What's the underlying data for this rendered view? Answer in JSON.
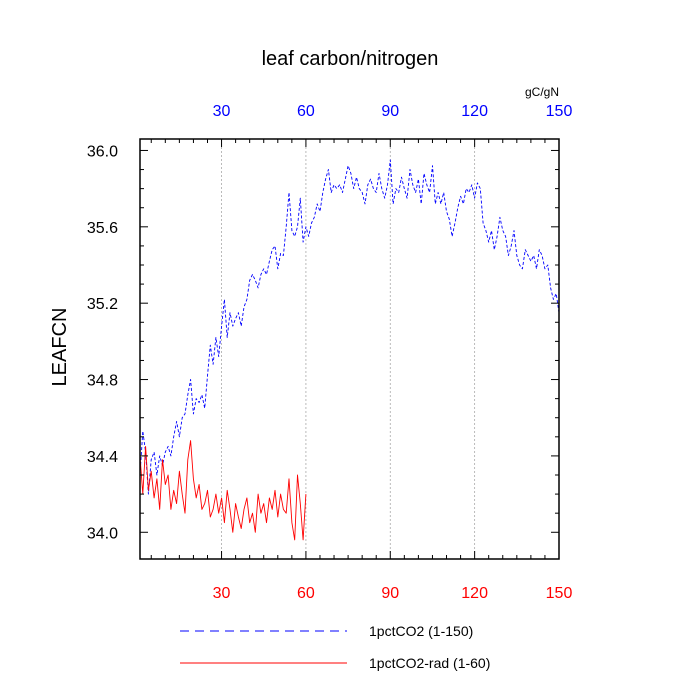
{
  "chart_data": {
    "type": "line",
    "title": "leaf carbon/nitrogen",
    "ylabel": "LEAFCN",
    "units": "gC/gN",
    "xlim": [
      1,
      150
    ],
    "ylim": [
      33.86,
      36.06
    ],
    "xticks": [
      30,
      60,
      90,
      120,
      150
    ],
    "yticks": [
      34.0,
      34.4,
      34.8,
      35.2,
      35.6,
      36.0
    ],
    "ytick_labels": [
      "34.0",
      "34.4",
      "34.8",
      "35.2",
      "35.6",
      "36.0"
    ],
    "grid": "x-dashed",
    "legend_position": "bottom",
    "series": [
      {
        "name": "1pctCO2 (1-150)",
        "color": "#0000ff",
        "dash": "dashed",
        "x": [
          1,
          2,
          3,
          4,
          5,
          6,
          7,
          8,
          9,
          10,
          11,
          12,
          13,
          14,
          15,
          16,
          17,
          18,
          19,
          20,
          21,
          22,
          23,
          24,
          25,
          26,
          27,
          28,
          29,
          30,
          31,
          32,
          33,
          34,
          35,
          36,
          37,
          38,
          39,
          40,
          41,
          42,
          43,
          44,
          45,
          46,
          47,
          48,
          49,
          50,
          51,
          52,
          53,
          54,
          55,
          56,
          57,
          58,
          59,
          60,
          61,
          62,
          63,
          64,
          65,
          66,
          67,
          68,
          69,
          70,
          71,
          72,
          73,
          74,
          75,
          76,
          77,
          78,
          79,
          80,
          81,
          82,
          83,
          84,
          85,
          86,
          87,
          88,
          89,
          90,
          91,
          92,
          93,
          94,
          95,
          96,
          97,
          98,
          99,
          100,
          101,
          102,
          103,
          104,
          105,
          106,
          107,
          108,
          109,
          110,
          111,
          112,
          113,
          114,
          115,
          116,
          117,
          118,
          119,
          120,
          121,
          122,
          123,
          124,
          125,
          126,
          127,
          128,
          129,
          130,
          131,
          132,
          133,
          134,
          135,
          136,
          137,
          138,
          139,
          140,
          141,
          142,
          143,
          144,
          145,
          146,
          147,
          148,
          149,
          150
        ],
        "values": [
          34.3,
          34.53,
          34.42,
          34.2,
          34.38,
          34.42,
          34.3,
          34.4,
          34.35,
          34.42,
          34.45,
          34.4,
          34.5,
          34.58,
          34.5,
          34.6,
          34.62,
          34.72,
          34.8,
          34.62,
          34.7,
          34.68,
          34.72,
          34.65,
          34.82,
          34.98,
          34.88,
          35.02,
          34.92,
          35.08,
          35.22,
          35.02,
          35.15,
          35.08,
          35.12,
          35.15,
          35.08,
          35.18,
          35.22,
          35.32,
          35.35,
          35.32,
          35.28,
          35.35,
          35.38,
          35.35,
          35.42,
          35.48,
          35.5,
          35.38,
          35.46,
          35.45,
          35.6,
          35.78,
          35.58,
          35.55,
          35.6,
          35.75,
          35.52,
          35.6,
          35.55,
          35.62,
          35.65,
          35.72,
          35.68,
          35.78,
          35.85,
          35.9,
          35.78,
          35.82,
          35.8,
          35.82,
          35.78,
          35.85,
          35.92,
          35.88,
          35.8,
          35.86,
          35.8,
          35.78,
          35.72,
          35.82,
          35.85,
          35.8,
          35.78,
          35.88,
          35.8,
          35.75,
          35.82,
          35.95,
          35.72,
          35.8,
          35.78,
          35.86,
          35.8,
          35.75,
          35.9,
          35.82,
          35.78,
          35.85,
          35.72,
          35.88,
          35.82,
          35.78,
          35.92,
          35.72,
          35.78,
          35.72,
          35.78,
          35.68,
          35.64,
          35.55,
          35.62,
          35.7,
          35.76,
          35.72,
          35.8,
          35.78,
          35.82,
          35.75,
          35.83,
          35.8,
          35.62,
          35.58,
          35.52,
          35.58,
          35.48,
          35.55,
          35.65,
          35.58,
          35.55,
          35.45,
          35.5,
          35.58,
          35.45,
          35.4,
          35.38,
          35.48,
          35.45,
          35.42,
          35.45,
          35.38,
          35.48,
          35.45,
          35.38,
          35.4,
          35.28,
          35.22,
          35.25,
          35.15
        ]
      },
      {
        "name": "1pctCO2-rad (1-60)",
        "color": "#ff0000",
        "dash": "solid",
        "x": [
          1,
          2,
          3,
          4,
          5,
          6,
          7,
          8,
          9,
          10,
          11,
          12,
          13,
          14,
          15,
          16,
          17,
          18,
          19,
          20,
          21,
          22,
          23,
          24,
          25,
          26,
          27,
          28,
          29,
          30,
          31,
          32,
          33,
          34,
          35,
          36,
          37,
          38,
          39,
          40,
          41,
          42,
          43,
          44,
          45,
          46,
          47,
          48,
          49,
          50,
          51,
          52,
          53,
          54,
          55,
          56,
          57,
          58,
          59,
          60
        ],
        "values": [
          34.4,
          34.2,
          34.45,
          34.22,
          34.32,
          34.18,
          34.28,
          34.12,
          34.38,
          34.25,
          34.3,
          34.12,
          34.22,
          34.15,
          34.32,
          34.2,
          34.1,
          34.38,
          34.48,
          34.28,
          34.18,
          34.25,
          34.12,
          34.15,
          34.22,
          34.08,
          34.12,
          34.2,
          34.1,
          34.18,
          34.05,
          34.22,
          34.12,
          34.0,
          34.15,
          34.08,
          34.02,
          34.12,
          34.18,
          34.05,
          34.1,
          34.0,
          34.2,
          34.1,
          34.15,
          34.05,
          34.18,
          34.12,
          34.22,
          34.08,
          34.2,
          34.12,
          34.1,
          34.28,
          34.05,
          33.96,
          34.3,
          34.15,
          33.96,
          34.2
        ]
      }
    ]
  }
}
